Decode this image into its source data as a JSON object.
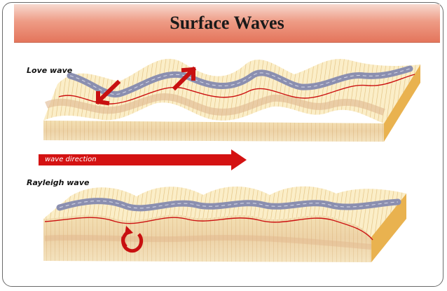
{
  "slide": {
    "title": "Surface Waves"
  },
  "labels": {
    "love_wave": "Love wave",
    "rayleigh_wave": "Rayleigh wave",
    "wave_direction": "wave direction"
  },
  "colors": {
    "title_gradient_top": "#f7d9cf",
    "title_gradient_bottom": "#e4755c",
    "ground_light": "#fbeec8",
    "ground_stripe": "#e8c98a",
    "road": "#8b8fb0",
    "red": "#cc1111",
    "arrow_red": "#d41212"
  }
}
